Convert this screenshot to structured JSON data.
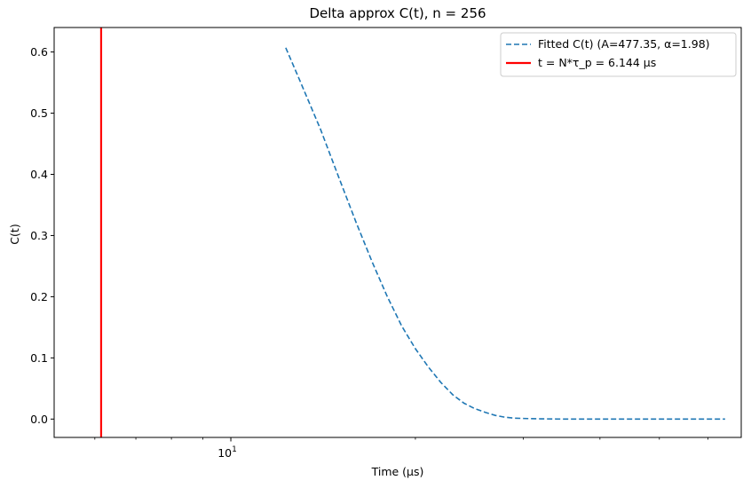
{
  "chart_data": {
    "type": "line",
    "title": "Delta approx C(t), n = 256",
    "xlabel": "Time (μs)",
    "ylabel": "C(t)",
    "xscale": "log",
    "xlim": [
      5.15,
      68.0
    ],
    "ylim": [
      -0.03,
      0.64
    ],
    "x_major_ticks": [
      10
    ],
    "x_major_tick_labels": [
      "10¹"
    ],
    "x_major_tick_base": "10",
    "x_major_tick_exp": "1",
    "x_minor_ticks": [
      6,
      7,
      8,
      9,
      20,
      30,
      40,
      50,
      60
    ],
    "y_ticks": [
      0.0,
      0.1,
      0.2,
      0.3,
      0.4,
      0.5,
      0.6
    ],
    "y_tick_labels": [
      "0.0",
      "0.1",
      "0.2",
      "0.3",
      "0.4",
      "0.5",
      "0.6"
    ],
    "grid": false,
    "legend_position": "top-right",
    "series": [
      {
        "name": "Fitted C(t) (A=477.35, α=1.98)",
        "style": "dashed",
        "color": "#1f77b4",
        "x": [
          12.29,
          13.0,
          14.0,
          15.0,
          16.0,
          17.0,
          18.0,
          19.0,
          20.0,
          21.0,
          22.0,
          23.0,
          24.0,
          25.0,
          26.0,
          27.0,
          28.0,
          29.0,
          30.0,
          32.0,
          34.0,
          36.0,
          40.0,
          45.0,
          50.0,
          55.0,
          60.0,
          64.0
        ],
        "y": [
          0.607,
          0.55,
          0.474,
          0.395,
          0.322,
          0.257,
          0.2,
          0.152,
          0.115,
          0.085,
          0.06,
          0.04,
          0.026,
          0.017,
          0.011,
          0.006,
          0.003,
          0.0015,
          0.001,
          0.0004,
          0.0001,
          0.0,
          0.0,
          0.0,
          0.0,
          0.0,
          0.0,
          0.0
        ]
      },
      {
        "name": "t = N*τ_p = 6.144 μs",
        "style": "vline",
        "color": "#ff0000",
        "x": 6.144
      }
    ]
  }
}
